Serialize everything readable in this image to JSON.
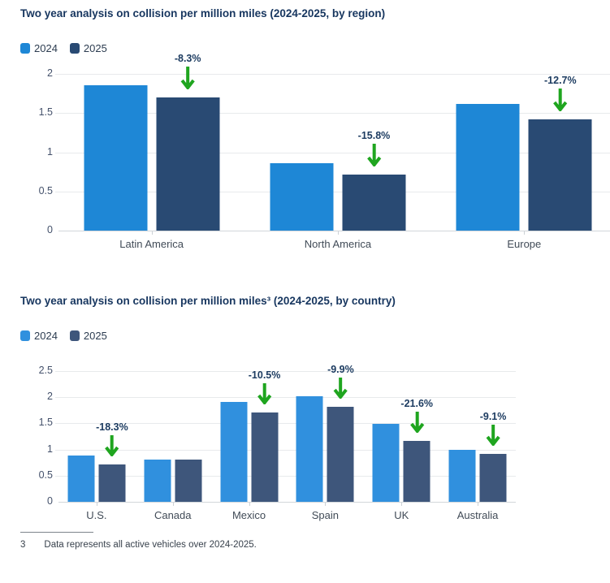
{
  "chart_data": [
    {
      "type": "bar",
      "title": "Two year analysis on collision per million miles (2024-2025, by region)",
      "categories": [
        "Latin America",
        "North America",
        "Europe"
      ],
      "series": [
        {
          "name": "2024",
          "color": "#1e87d6",
          "values": [
            1.86,
            0.86,
            1.62
          ]
        },
        {
          "name": "2025",
          "color": "#294a73",
          "values": [
            1.7,
            0.72,
            1.42
          ]
        }
      ],
      "annotations": [
        "-8.3%",
        "-15.8%",
        "-12.7%"
      ],
      "yticks": [
        0,
        0.5,
        1,
        1.5,
        2
      ],
      "ylim": [
        0,
        2.07
      ],
      "grid": true,
      "legend_position": "top-left"
    },
    {
      "type": "bar",
      "title": "Two year analysis on collision per million miles³ (2024-2025, by country)",
      "categories": [
        "U.S.",
        "Canada",
        "Mexico",
        "Spain",
        "UK",
        "Australia"
      ],
      "series": [
        {
          "name": "2024",
          "color": "#3090de",
          "values": [
            0.88,
            0.81,
            1.91,
            2.02,
            1.49,
            1.0
          ]
        },
        {
          "name": "2025",
          "color": "#3e567b",
          "values": [
            0.72,
            0.81,
            1.71,
            1.82,
            1.17,
            0.91
          ]
        }
      ],
      "annotations": [
        "-18.3%",
        null,
        "-10.5%",
        "-9.9%",
        "-21.6%",
        "-9.1%"
      ],
      "yticks": [
        0,
        0.5,
        1,
        1.5,
        2,
        2.5
      ],
      "ylim": [
        0,
        2.8
      ],
      "grid": true,
      "legend_position": "top-left"
    }
  ],
  "footnote": {
    "marker": "3",
    "text": "Data represents all active vehicles over 2024-2025."
  },
  "colors": {
    "title_text": "#17365f",
    "tick_label": "#44516b",
    "category_label": "#414b57",
    "legend_label": "#2c3c50",
    "annotation_text": "#1d3c61",
    "arrow_green": "#1fa51f",
    "gridline": "#e8eaec",
    "axis_line": "#d2d6da",
    "background": "#ffffff"
  }
}
